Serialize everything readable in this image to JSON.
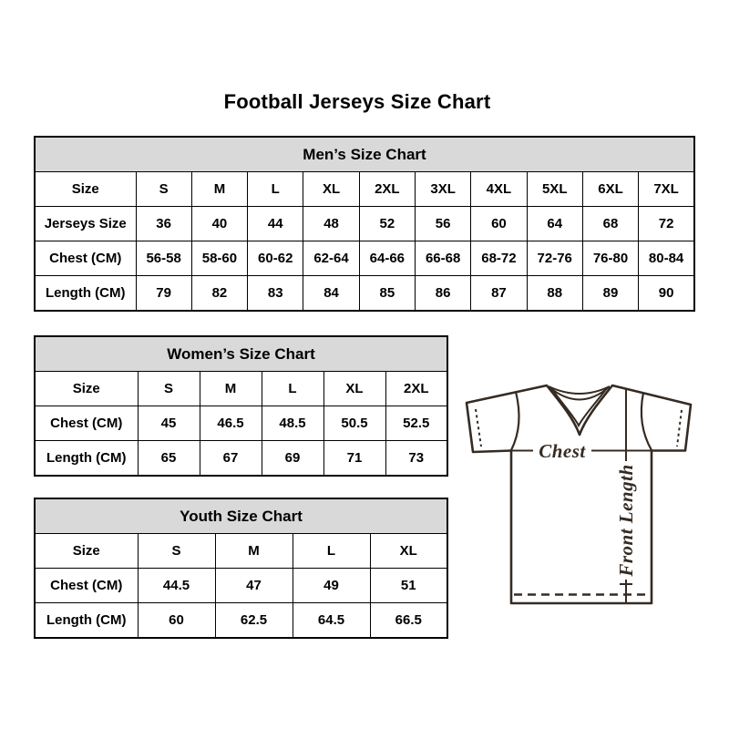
{
  "page": {
    "title": "Football Jerseys Size Chart"
  },
  "colors": {
    "table_header_bg": "#d9d9d9",
    "table_border": "#000000",
    "diagram_stroke": "#352b23"
  },
  "tables": [
    {
      "name": "mens",
      "header": "Men’s Size Chart",
      "rows": [
        [
          "Size",
          "S",
          "M",
          "L",
          "XL",
          "2XL",
          "3XL",
          "4XL",
          "5XL",
          "6XL",
          "7XL"
        ],
        [
          "Jerseys Size",
          "36",
          "40",
          "44",
          "48",
          "52",
          "56",
          "60",
          "64",
          "68",
          "72"
        ],
        [
          "Chest (CM)",
          "56-58",
          "58-60",
          "60-62",
          "62-64",
          "64-66",
          "66-68",
          "68-72",
          "72-76",
          "76-80",
          "80-84"
        ],
        [
          "Length (CM)",
          "79",
          "82",
          "83",
          "84",
          "85",
          "86",
          "87",
          "88",
          "89",
          "90"
        ]
      ]
    },
    {
      "name": "womens",
      "header": "Women’s Size Chart",
      "rows": [
        [
          "Size",
          "S",
          "M",
          "L",
          "XL",
          "2XL"
        ],
        [
          "Chest (CM)",
          "45",
          "46.5",
          "48.5",
          "50.5",
          "52.5"
        ],
        [
          "Length (CM)",
          "65",
          "67",
          "69",
          "71",
          "73"
        ]
      ]
    },
    {
      "name": "youth",
      "header": "Youth Size Chart",
      "rows": [
        [
          "Size",
          "S",
          "M",
          "L",
          "XL"
        ],
        [
          "Chest (CM)",
          "44.5",
          "47",
          "49",
          "51"
        ],
        [
          "Length (CM)",
          "60",
          "62.5",
          "64.5",
          "66.5"
        ]
      ]
    }
  ],
  "diagram": {
    "labels": {
      "chest": "Chest",
      "front_length": "Front Length"
    }
  }
}
